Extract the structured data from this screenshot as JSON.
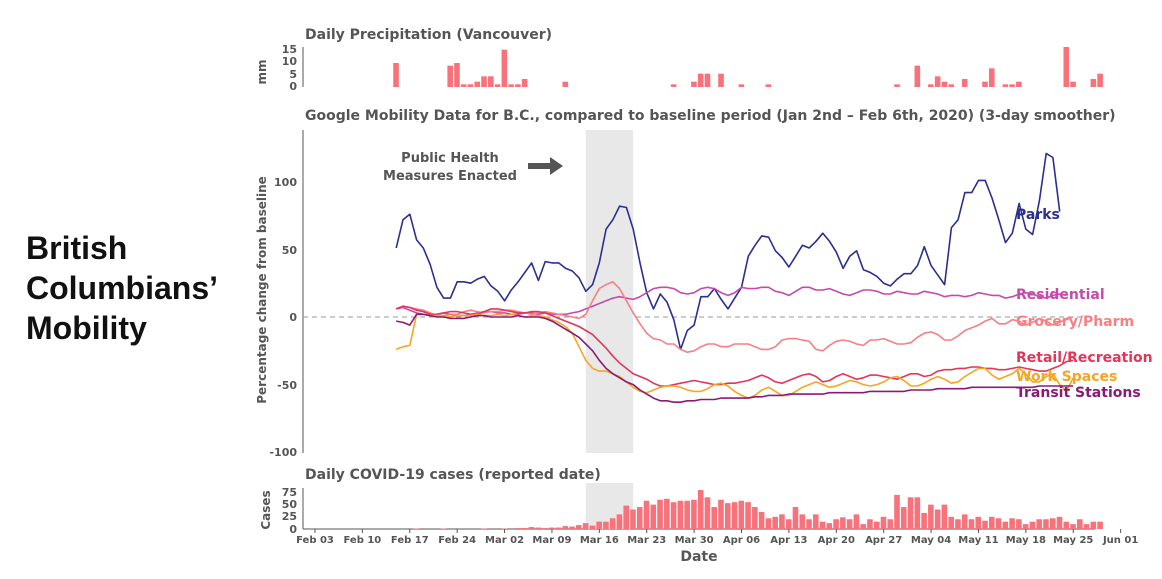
{
  "page": {
    "title_lines": [
      "British",
      "Columbians’",
      "Mobility"
    ]
  },
  "colors": {
    "parks": "#2b2f8f",
    "residential": "#c64aab",
    "grocery": "#f77f83",
    "retail": "#e0365a",
    "work": "#f5a623",
    "transit": "#8a1a78",
    "bars": "#f7727b",
    "shade": "#e8e8e8",
    "text": "#555555"
  },
  "chart_data": [
    {
      "type": "bar",
      "title": "Daily Precipitation (Vancouver)",
      "ylabel": "mm",
      "ylim": [
        0,
        15
      ],
      "yticks": [
        "15",
        "10",
        "5",
        "0"
      ],
      "start_date": "2020-02-15",
      "values": [
        9,
        0,
        0,
        0,
        0,
        0,
        0,
        0,
        8,
        9,
        1,
        1,
        2,
        4,
        4,
        1,
        14,
        1,
        1,
        3,
        0,
        0,
        0,
        0,
        0,
        2,
        0,
        0,
        0,
        0,
        0,
        0,
        0,
        0,
        0,
        0,
        0,
        0,
        0,
        0,
        0,
        1,
        0,
        0,
        2,
        5,
        5,
        0,
        5,
        0,
        0,
        1,
        0,
        0,
        0,
        1,
        0,
        0,
        0,
        0,
        0,
        0,
        0,
        0,
        0,
        0,
        0,
        0,
        0,
        0,
        0,
        0,
        0,
        0,
        1,
        0,
        0,
        8,
        0,
        1,
        4,
        2,
        1,
        0,
        3,
        0,
        0,
        2,
        7,
        0,
        1,
        1,
        2,
        0,
        0,
        0,
        0,
        0,
        0,
        15,
        2,
        0,
        0,
        3,
        5
      ]
    },
    {
      "type": "line",
      "title": "Google Mobility Data for B.C., compared to baseline period (Jan 2nd – Feb 6th, 2020) (3-day smoother)",
      "ylabel": "Percentage change from baseline",
      "ylim": [
        -100,
        130
      ],
      "yticks": [
        "100",
        "50",
        "0",
        "-50",
        "-100"
      ],
      "start_date": "2020-02-15",
      "annotation": "Public Health\nMeasures Enacted",
      "shaded_range": [
        "2020-03-14",
        "2020-03-21"
      ],
      "series": [
        {
          "name": "Parks",
          "key": "parks",
          "values": [
            51,
            72,
            76,
            57,
            51,
            39,
            22,
            14,
            14,
            26,
            26,
            25,
            28,
            30,
            23,
            19,
            12,
            20,
            26,
            33,
            40,
            27,
            41,
            40,
            40,
            36,
            34,
            29,
            19,
            24,
            40,
            65,
            72,
            82,
            81,
            65,
            40,
            18,
            6,
            17,
            11,
            -2,
            -24,
            -10,
            -6,
            15,
            15,
            21,
            13,
            6,
            14,
            22,
            45,
            53,
            60,
            59,
            49,
            44,
            37,
            45,
            53,
            51,
            56,
            62,
            56,
            48,
            36,
            45,
            49,
            35,
            33,
            30,
            25,
            23,
            28,
            32,
            32,
            38,
            52,
            38,
            31,
            24,
            66,
            72,
            92,
            92,
            101,
            101,
            88,
            72,
            55,
            62,
            84,
            65,
            61,
            86,
            121,
            118,
            78
          ]
        },
        {
          "name": "Residential",
          "key": "residential",
          "values": [
            6,
            7,
            5,
            3,
            2,
            1,
            2,
            3,
            2,
            1,
            1,
            2,
            3,
            4,
            4,
            3,
            3,
            2,
            2,
            3,
            3,
            2,
            3,
            2,
            2,
            2,
            3,
            4,
            6,
            8,
            10,
            12,
            14,
            15,
            14,
            13,
            15,
            18,
            21,
            22,
            22,
            21,
            18,
            17,
            18,
            21,
            22,
            21,
            18,
            16,
            18,
            22,
            21,
            21,
            22,
            22,
            19,
            18,
            16,
            19,
            22,
            22,
            20,
            20,
            21,
            19,
            17,
            16,
            18,
            20,
            20,
            19,
            17,
            17,
            19,
            18,
            17,
            17,
            19,
            18,
            17,
            15,
            16,
            16,
            15,
            16,
            18,
            17,
            16,
            16,
            14,
            15,
            17,
            18,
            17,
            15,
            14,
            16,
            17,
            16
          ]
        },
        {
          "name": "Grocery/Pharm",
          "key": "grocery",
          "values": [
            6,
            8,
            7,
            6,
            5,
            3,
            1,
            1,
            2,
            2,
            4,
            5,
            4,
            3,
            4,
            4,
            5,
            5,
            4,
            3,
            2,
            3,
            4,
            3,
            2,
            1,
            0,
            -1,
            2,
            12,
            21,
            24,
            26,
            21,
            12,
            3,
            -5,
            -12,
            -16,
            -17,
            -20,
            -20,
            -24,
            -26,
            -25,
            -22,
            -20,
            -20,
            -22,
            -22,
            -20,
            -20,
            -20,
            -22,
            -24,
            -24,
            -22,
            -17,
            -16,
            -16,
            -17,
            -18,
            -24,
            -25,
            -21,
            -18,
            -17,
            -18,
            -20,
            -21,
            -17,
            -17,
            -16,
            -18,
            -20,
            -20,
            -19,
            -15,
            -12,
            -11,
            -13,
            -17,
            -17,
            -14,
            -10,
            -8,
            -6,
            -3,
            -1,
            -5,
            -5,
            -2,
            -3,
            -6,
            -4,
            -1,
            -3,
            -6,
            -4,
            -1,
            0
          ]
        },
        {
          "name": "Retail/Recreation",
          "key": "retail",
          "values": [
            6,
            8,
            7,
            5,
            4,
            2,
            2,
            3,
            4,
            4,
            3,
            2,
            2,
            4,
            6,
            6,
            5,
            4,
            3,
            3,
            4,
            4,
            3,
            1,
            -1,
            -3,
            -5,
            -7,
            -10,
            -13,
            -18,
            -23,
            -29,
            -34,
            -38,
            -42,
            -44,
            -46,
            -49,
            -51,
            -51,
            -50,
            -49,
            -48,
            -47,
            -48,
            -49,
            -50,
            -50,
            -49,
            -49,
            -48,
            -47,
            -45,
            -43,
            -45,
            -48,
            -49,
            -47,
            -45,
            -43,
            -42,
            -44,
            -48,
            -47,
            -44,
            -42,
            -44,
            -46,
            -45,
            -43,
            -43,
            -44,
            -45,
            -46,
            -44,
            -42,
            -42,
            -44,
            -43,
            -40,
            -39,
            -39,
            -38,
            -38,
            -37,
            -37,
            -38,
            -38,
            -39,
            -39,
            -38,
            -37,
            -38,
            -39,
            -40,
            -40,
            -38,
            -36,
            -33,
            -32
          ]
        },
        {
          "name": "Work Spaces",
          "key": "work",
          "values": [
            -24,
            -22,
            -21,
            2,
            2,
            1,
            1,
            1,
            0,
            1,
            1,
            1,
            2,
            1,
            1,
            2,
            1,
            2,
            1,
            0,
            1,
            1,
            0,
            -2,
            -4,
            -7,
            -12,
            -22,
            -32,
            -38,
            -40,
            -40,
            -42,
            -44,
            -48,
            -52,
            -55,
            -56,
            -54,
            -52,
            -51,
            -51,
            -52,
            -54,
            -55,
            -55,
            -53,
            -50,
            -49,
            -51,
            -55,
            -58,
            -60,
            -58,
            -54,
            -52,
            -55,
            -58,
            -58,
            -55,
            -52,
            -50,
            -48,
            -50,
            -52,
            -51,
            -49,
            -47,
            -48,
            -50,
            -51,
            -50,
            -48,
            -45,
            -44,
            -47,
            -51,
            -51,
            -49,
            -46,
            -44,
            -46,
            -49,
            -48,
            -44,
            -41,
            -38,
            -38,
            -43,
            -46,
            -44,
            -42,
            -38,
            -42,
            -48,
            -48,
            -44,
            -42,
            -50,
            -55,
            -45
          ]
        },
        {
          "name": "Transit Stations",
          "key": "transit",
          "values": [
            -3,
            -4,
            -6,
            2,
            2,
            1,
            0,
            0,
            -1,
            -1,
            -1,
            0,
            1,
            1,
            0,
            0,
            0,
            0,
            1,
            0,
            0,
            0,
            -1,
            -3,
            -6,
            -9,
            -12,
            -15,
            -20,
            -25,
            -32,
            -38,
            -42,
            -45,
            -48,
            -50,
            -54,
            -57,
            -60,
            -62,
            -62,
            -63,
            -63,
            -62,
            -62,
            -61,
            -61,
            -61,
            -60,
            -60,
            -60,
            -60,
            -60,
            -59,
            -59,
            -58,
            -58,
            -58,
            -57,
            -57,
            -57,
            -57,
            -57,
            -57,
            -56,
            -56,
            -56,
            -56,
            -56,
            -56,
            -55,
            -55,
            -55,
            -55,
            -55,
            -55,
            -54,
            -54,
            -54,
            -54,
            -53,
            -53,
            -53,
            -53,
            -53,
            -52,
            -52,
            -52,
            -52,
            -52,
            -52,
            -52,
            -52,
            -52,
            -52,
            -51,
            -51,
            -51,
            -51,
            -51,
            -51
          ]
        }
      ]
    },
    {
      "type": "bar",
      "title": "Daily COVID-19 cases (reported date)",
      "ylabel": "Cases",
      "ylim": [
        0,
        80
      ],
      "yticks": [
        "75",
        "50",
        "25",
        "0"
      ],
      "xlabel": "Date",
      "start_date": "2020-02-15",
      "x_ticks": [
        "Feb 03",
        "Feb 10",
        "Feb 17",
        "Feb 24",
        "Mar 02",
        "Mar 09",
        "Mar 16",
        "Mar 23",
        "Mar 30",
        "Apr 06",
        "Apr 13",
        "Apr 20",
        "Apr 27",
        "May 04",
        "May 11",
        "May 18",
        "May 25",
        "Jun 01"
      ],
      "values": [
        0,
        0,
        0,
        1,
        0,
        0,
        0,
        1,
        0,
        0,
        0,
        0,
        0,
        1,
        0,
        0,
        1,
        0,
        2,
        2,
        4,
        3,
        2,
        3,
        3,
        6,
        5,
        8,
        12,
        7,
        15,
        15,
        22,
        30,
        48,
        40,
        45,
        58,
        50,
        60,
        62,
        55,
        58,
        58,
        60,
        80,
        65,
        45,
        60,
        53,
        55,
        58,
        55,
        45,
        35,
        22,
        25,
        30,
        20,
        45,
        30,
        20,
        30,
        15,
        12,
        20,
        24,
        20,
        30,
        10,
        20,
        15,
        25,
        20,
        70,
        45,
        65,
        65,
        33,
        50,
        40,
        50,
        25,
        20,
        30,
        20,
        25,
        17,
        25,
        22,
        15,
        22,
        20,
        10,
        15,
        20,
        20,
        22,
        25,
        15,
        10,
        20,
        10,
        15,
        15
      ]
    }
  ]
}
